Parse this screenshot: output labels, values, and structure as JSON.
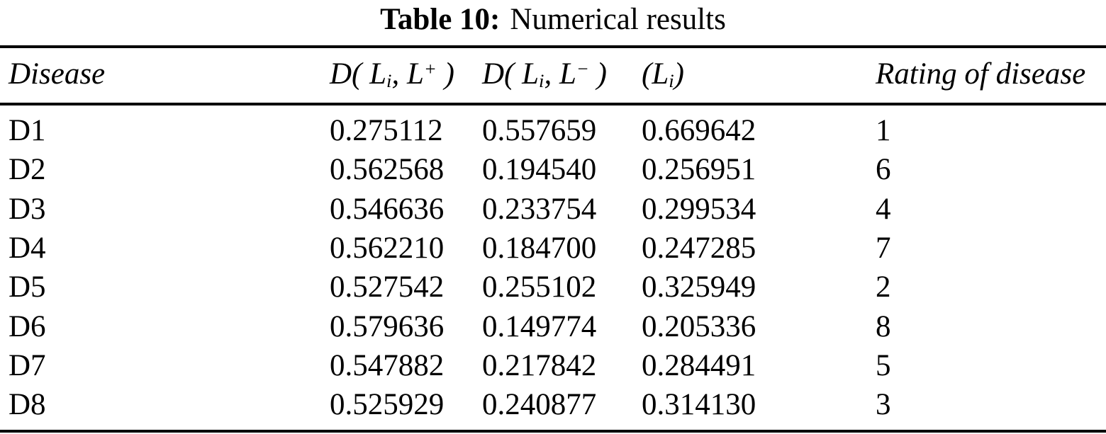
{
  "caption": {
    "label": "Table 10:",
    "title": "Numerical results"
  },
  "table": {
    "columns": [
      {
        "name": "disease",
        "parts": [
          {
            "text": "Disease"
          }
        ]
      },
      {
        "name": "distance-positive",
        "parts": [
          {
            "text": "D( L"
          },
          {
            "text": "i",
            "style": "sub"
          },
          {
            "text": ", L"
          },
          {
            "text": "+",
            "style": "sup"
          },
          {
            "text": " )"
          }
        ]
      },
      {
        "name": "distance-negative",
        "parts": [
          {
            "text": "D( L"
          },
          {
            "text": "i",
            "style": "sub"
          },
          {
            "text": ", L"
          },
          {
            "text": "−",
            "style": "sup"
          },
          {
            "text": " )"
          }
        ]
      },
      {
        "name": "closeness",
        "parts": [
          {
            "text": "(L"
          },
          {
            "text": "i",
            "style": "sub"
          },
          {
            "text": ")"
          }
        ]
      },
      {
        "name": "rating",
        "parts": [
          {
            "text": "Rating of disease"
          }
        ]
      }
    ],
    "rows": [
      [
        "D1",
        "0.275112",
        "0.557659",
        "0.669642",
        "1"
      ],
      [
        "D2",
        "0.562568",
        "0.194540",
        "0.256951",
        "6"
      ],
      [
        "D3",
        "0.546636",
        "0.233754",
        "0.299534",
        "4"
      ],
      [
        "D4",
        "0.562210",
        "0.184700",
        "0.247285",
        "7"
      ],
      [
        "D5",
        "0.527542",
        "0.255102",
        "0.325949",
        "2"
      ],
      [
        "D6",
        "0.579636",
        "0.149774",
        "0.205336",
        "8"
      ],
      [
        "D7",
        "0.547882",
        "0.217842",
        "0.284491",
        "5"
      ],
      [
        "D8",
        "0.525929",
        "0.240877",
        "0.314130",
        "3"
      ]
    ]
  }
}
